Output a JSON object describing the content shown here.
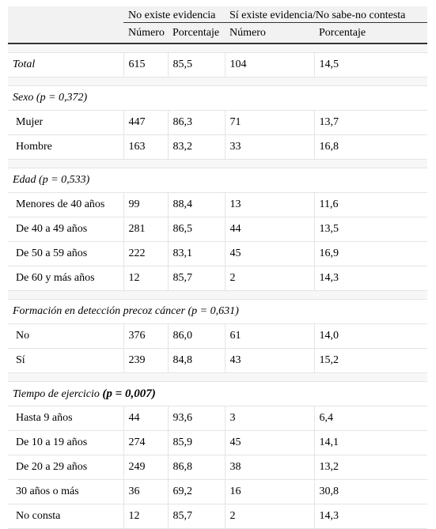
{
  "header": {
    "group1": "No existe evidencia",
    "group2": "Sí existe evidencia/No sabe-no contesta",
    "col_numero_1": "Número",
    "col_porcentaje_1": "Porcentaje",
    "col_numero_2": "Número",
    "col_porcentaje_2": "Porcentaje"
  },
  "total": {
    "label": "Total",
    "n1": "615",
    "p1": "85,5",
    "n2": "104",
    "p2": "14,5"
  },
  "sexo": {
    "title": "Sexo (p = 0,372)",
    "rows": [
      {
        "label": "Mujer",
        "n1": "447",
        "p1": "86,3",
        "n2": "71",
        "p2": "13,7"
      },
      {
        "label": "Hombre",
        "n1": "163",
        "p1": "83,2",
        "n2": "33",
        "p2": "16,8"
      }
    ]
  },
  "edad": {
    "title": "Edad (p = 0,533)",
    "rows": [
      {
        "label": "Menores de 40 años",
        "n1": "99",
        "p1": "88,4",
        "n2": "13",
        "p2": "11,6"
      },
      {
        "label": "De 40 a 49 años",
        "n1": "281",
        "p1": "86,5",
        "n2": "44",
        "p2": "13,5"
      },
      {
        "label": "De 50 a 59 años",
        "n1": "222",
        "p1": "83,1",
        "n2": "45",
        "p2": "16,9"
      },
      {
        "label": "De 60 y más años",
        "n1": "12",
        "p1": "85,7",
        "n2": "2",
        "p2": "14,3"
      }
    ]
  },
  "formacion": {
    "title": "Formación en detección precoz cáncer (p = 0,631)",
    "rows": [
      {
        "label": "No",
        "n1": "376",
        "p1": "86,0",
        "n2": "61",
        "p2": "14,0"
      },
      {
        "label": "Sí",
        "n1": "239",
        "p1": "84,8",
        "n2": "43",
        "p2": "15,2"
      }
    ]
  },
  "tiempo": {
    "title_text": "Tiempo de ejercicio",
    "title_p": "(p = 0,007)",
    "rows": [
      {
        "label": "Hasta 9 años",
        "n1": "44",
        "p1": "93,6",
        "n2": "3",
        "p2": "6,4"
      },
      {
        "label": "De 10 a 19 años",
        "n1": "274",
        "p1": "85,9",
        "n2": "45",
        "p2": "14,1"
      },
      {
        "label": "De 20 a 29 años",
        "n1": "249",
        "p1": "86,8",
        "n2": "38",
        "p2": "13,2"
      },
      {
        "label": "30 años o más",
        "n1": "36",
        "p1": "69,2",
        "n2": "16",
        "p2": "30,8"
      },
      {
        "label": "No consta",
        "n1": "12",
        "p1": "85,7",
        "n2": "2",
        "p2": "14,3"
      }
    ]
  }
}
